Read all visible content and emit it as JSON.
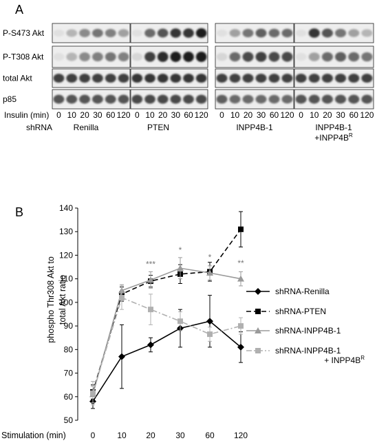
{
  "panel_a": {
    "letter": "A",
    "row_labels": [
      "P-S473 Akt",
      "P-T308 Akt",
      "total Akt",
      "p85"
    ],
    "insulin_label": "Insulin (min)",
    "shrna_label": "shRNA",
    "timepoints": [
      "0",
      "10",
      "20",
      "30",
      "60",
      "120"
    ],
    "groups": [
      {
        "label": "Renilla",
        "label2": ""
      },
      {
        "label": "PTEN",
        "label2": ""
      },
      {
        "label": "INPP4B-1",
        "label2": ""
      },
      {
        "label": "INPP4B-1",
        "label2": "+INPP4B",
        "label2_sup": "R"
      }
    ],
    "band_intensity": {
      "pS473": [
        [
          0.05,
          0.25,
          0.45,
          0.55,
          0.5,
          0.35
        ],
        [
          0.05,
          0.6,
          0.7,
          0.85,
          0.85,
          0.95
        ],
        [
          0.05,
          0.35,
          0.55,
          0.65,
          0.6,
          0.6
        ],
        [
          0.05,
          0.85,
          0.7,
          0.55,
          0.35,
          0.25
        ]
      ],
      "pT308": [
        [
          0.05,
          0.25,
          0.45,
          0.5,
          0.55,
          0.5
        ],
        [
          0.1,
          0.8,
          0.9,
          0.95,
          0.95,
          0.95
        ],
        [
          0.1,
          0.6,
          0.75,
          0.8,
          0.75,
          0.75
        ],
        [
          0.05,
          0.35,
          0.6,
          0.65,
          0.6,
          0.55
        ]
      ],
      "total": [
        [
          0.8,
          0.8,
          0.8,
          0.8,
          0.8,
          0.8
        ],
        [
          0.85,
          0.85,
          0.85,
          0.85,
          0.85,
          0.85
        ],
        [
          0.8,
          0.8,
          0.8,
          0.8,
          0.8,
          0.8
        ],
        [
          0.8,
          0.8,
          0.8,
          0.8,
          0.8,
          0.8
        ]
      ],
      "p85": [
        [
          0.7,
          0.7,
          0.7,
          0.7,
          0.7,
          0.7
        ],
        [
          0.75,
          0.75,
          0.75,
          0.75,
          0.75,
          0.75
        ],
        [
          0.65,
          0.6,
          0.6,
          0.6,
          0.6,
          0.6
        ],
        [
          0.7,
          0.7,
          0.7,
          0.7,
          0.7,
          0.7
        ]
      ]
    }
  },
  "chart_data": {
    "type": "line",
    "panel_letter": "B",
    "xlabel": "Stimulation (min)",
    "ylabel_line1": "phospho Thr308 Akt to",
    "ylabel_line2": "total Akt ratio",
    "categories": [
      "0",
      "10",
      "20",
      "30",
      "60",
      "120"
    ],
    "ylim": [
      50,
      140
    ],
    "yticks": [
      "50",
      "60",
      "70",
      "80",
      "90",
      "100",
      "110",
      "120",
      "130",
      "140"
    ],
    "grid": false,
    "legend_position": "right",
    "series": [
      {
        "name": "shRNA-Renilla",
        "color": "#000000",
        "dash": "solid",
        "marker": "diamond",
        "values": [
          58,
          77,
          82,
          89,
          92,
          81
        ],
        "err": [
          3,
          13.5,
          3,
          8,
          11,
          6.5
        ]
      },
      {
        "name": "shRNA-PTEN",
        "color": "#000000",
        "dash": "long-dash",
        "marker": "square",
        "values": [
          62,
          103.5,
          109,
          112,
          113,
          131
        ],
        "err": [
          3,
          3,
          2.5,
          4,
          4,
          7.5
        ]
      },
      {
        "name": "shRNA-INPP4B-1",
        "color": "#9a9a9a",
        "dash": "solid",
        "marker": "triangle",
        "values": [
          61,
          105,
          109.5,
          114.5,
          112.5,
          110
        ],
        "err": [
          3.5,
          2.5,
          3.5,
          4.5,
          3,
          3
        ]
      },
      {
        "name": "shRNA-INPP4B-1",
        "name2": "+ INPP4B",
        "name2_sup": "R",
        "color": "#b0b0b0",
        "dash": "dash-dot",
        "marker": "square",
        "values": [
          61.5,
          102,
          97,
          92,
          86.5,
          90
        ],
        "err": [
          5,
          5,
          6.5,
          4,
          3,
          3.5
        ]
      }
    ],
    "annotations": [
      {
        "text": "***",
        "x": "20",
        "y": 115
      },
      {
        "text": "*",
        "x": "30",
        "y": 121
      },
      {
        "text": "*",
        "x": "60",
        "y": 118
      },
      {
        "text": "**",
        "x": "120",
        "y": 115.5
      }
    ]
  }
}
